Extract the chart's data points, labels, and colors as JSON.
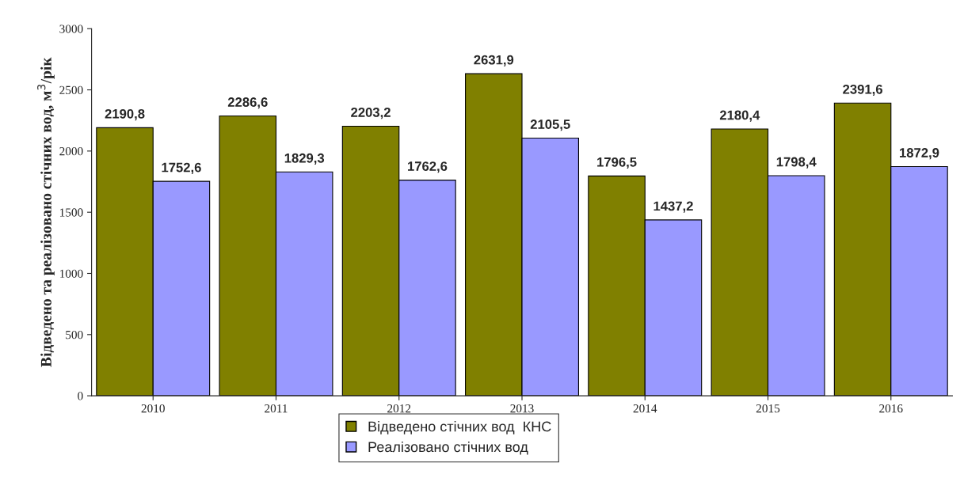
{
  "chart_data": {
    "type": "bar",
    "ylabel": "Відведено та реалізовано стічних вод, м$^{3}$/рік",
    "categories": [
      "2010",
      "2011",
      "2012",
      "2013",
      "2014",
      "2015",
      "2016"
    ],
    "series": [
      {
        "name": "Відведено стічних вод  КНС",
        "color": "#808000",
        "values": [
          2190.8,
          2286.6,
          2203.2,
          2631.9,
          1796.5,
          2180.4,
          2391.6
        ],
        "value_labels": [
          "2190,8",
          "2286,6",
          "2203,2",
          "2631,9",
          "1796,5",
          "2180,4",
          "2391,6"
        ]
      },
      {
        "name": "Реалізовано стічних вод",
        "color": "#9999ff",
        "values": [
          1752.6,
          1829.3,
          1762.6,
          2105.5,
          1437.2,
          1798.4,
          1872.9
        ],
        "value_labels": [
          "1752,6",
          "1829,3",
          "1762,6",
          "2105,5",
          "1437,2",
          "1798,4",
          "1872,9"
        ]
      }
    ],
    "ylim": [
      0,
      3000
    ],
    "yticks": [
      0,
      500,
      1000,
      1500,
      2000,
      2500,
      3000
    ],
    "grid": false,
    "legend": "bottom"
  }
}
